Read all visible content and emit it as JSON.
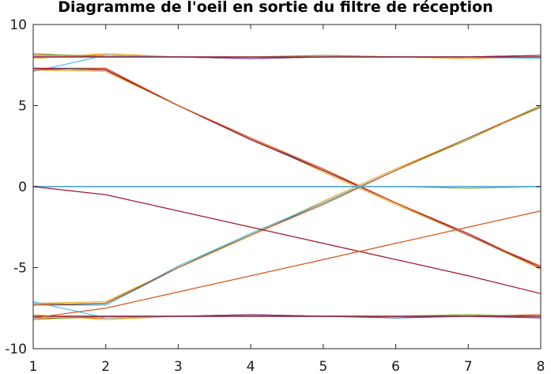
{
  "chart_data": {
    "type": "line",
    "title": "Diagramme de l'oeil en sortie du filtre de réception",
    "xlabel": "",
    "ylabel": "",
    "xlim": [
      1,
      8
    ],
    "ylim": [
      -10,
      10
    ],
    "xticks": [
      "1",
      "2",
      "3",
      "4",
      "5",
      "6",
      "7",
      "8"
    ],
    "yticks": [
      "10",
      "5",
      "0",
      "-5",
      "-10"
    ],
    "xtick_values": [
      1,
      2,
      3,
      4,
      5,
      6,
      7,
      8
    ],
    "ytick_values": [
      10,
      5,
      0,
      -5,
      -10
    ],
    "grid": false,
    "x": [
      1,
      2,
      3,
      4,
      5,
      6,
      7,
      8
    ],
    "series": [
      {
        "color": "#0072bd",
        "values": [
          8.0,
          8.0,
          8.0,
          7.9,
          8.0,
          8.0,
          8.0,
          8.0
        ]
      },
      {
        "color": "#d95319",
        "values": [
          8.1,
          8.1,
          8.0,
          8.0,
          8.0,
          8.0,
          7.9,
          8.0
        ]
      },
      {
        "color": "#edb120",
        "values": [
          7.9,
          8.2,
          8.0,
          7.9,
          8.1,
          8.0,
          7.9,
          8.0
        ]
      },
      {
        "color": "#77ac30",
        "values": [
          8.2,
          8.0,
          8.0,
          8.0,
          8.1,
          8.0,
          8.0,
          8.1
        ]
      },
      {
        "color": "#4dbeee",
        "values": [
          7.1,
          8.1,
          8.0,
          8.0,
          8.0,
          8.0,
          8.0,
          7.9
        ]
      },
      {
        "color": "#7e2f8e",
        "values": [
          8.0,
          8.0,
          8.0,
          7.9,
          8.0,
          8.0,
          8.0,
          8.1
        ]
      },
      {
        "color": "#a2142f",
        "values": [
          8.0,
          8.0,
          8.0,
          8.0,
          8.0,
          8.0,
          8.0,
          8.0
        ]
      },
      {
        "color": "#0072bd",
        "values": [
          -8.0,
          -8.0,
          -8.0,
          -8.0,
          -8.0,
          -8.1,
          -8.0,
          -8.0
        ]
      },
      {
        "color": "#d95319",
        "values": [
          -8.1,
          -8.1,
          -8.0,
          -8.0,
          -8.0,
          -8.0,
          -8.0,
          -7.9
        ]
      },
      {
        "color": "#edb120",
        "values": [
          -7.9,
          -8.2,
          -8.0,
          -7.9,
          -8.0,
          -8.0,
          -7.9,
          -8.1
        ]
      },
      {
        "color": "#77ac30",
        "values": [
          -8.2,
          -8.0,
          -8.0,
          -7.9,
          -8.0,
          -8.0,
          -7.9,
          -8.0
        ]
      },
      {
        "color": "#4dbeee",
        "values": [
          -7.1,
          -8.1,
          -8.0,
          -8.0,
          -8.0,
          -8.0,
          -8.0,
          -8.0
        ]
      },
      {
        "color": "#7e2f8e",
        "values": [
          -8.0,
          -8.0,
          -8.0,
          -7.9,
          -8.0,
          -8.0,
          -8.0,
          -8.1
        ]
      },
      {
        "color": "#a2142f",
        "values": [
          -8.0,
          -8.0,
          -8.0,
          -8.0,
          -8.0,
          -8.0,
          -8.0,
          -8.0
        ]
      },
      {
        "color": "#0072bd",
        "values": [
          7.3,
          7.3,
          5.0,
          3.0,
          1.0,
          -1.0,
          -3.0,
          -5.0
        ]
      },
      {
        "color": "#edb120",
        "values": [
          7.2,
          7.1,
          5.0,
          3.0,
          0.9,
          -1.1,
          -3.0,
          -5.1
        ]
      },
      {
        "color": "#7e2f8e",
        "values": [
          7.3,
          7.2,
          5.0,
          2.9,
          1.0,
          -1.0,
          -3.0,
          -5.0
        ]
      },
      {
        "color": "#a2142f",
        "values": [
          7.3,
          7.2,
          5.0,
          2.9,
          1.0,
          -1.0,
          -2.9,
          -5.0
        ]
      },
      {
        "color": "#d95319",
        "values": [
          7.2,
          7.3,
          5.0,
          3.0,
          1.1,
          -1.0,
          -3.0,
          -4.9
        ]
      },
      {
        "color": "#0072bd",
        "values": [
          -7.3,
          -7.3,
          -5.0,
          -3.0,
          -1.0,
          1.0,
          3.0,
          5.0
        ]
      },
      {
        "color": "#edb120",
        "values": [
          -7.2,
          -7.1,
          -5.0,
          -3.0,
          -0.9,
          1.1,
          3.0,
          5.0
        ]
      },
      {
        "color": "#77ac30",
        "values": [
          -7.3,
          -7.2,
          -5.0,
          -2.9,
          -1.0,
          1.0,
          2.9,
          5.0
        ]
      },
      {
        "color": "#4dbeee",
        "values": [
          -7.2,
          -7.3,
          -4.9,
          -2.9,
          -1.0,
          1.0,
          3.0,
          4.9
        ]
      },
      {
        "color": "#d95319",
        "values": [
          -7.3,
          -7.2,
          -5.0,
          -3.0,
          -1.1,
          1.0,
          3.0,
          4.9
        ]
      },
      {
        "color": "#0072bd",
        "values": [
          0.0,
          0.0,
          0.0,
          0.0,
          0.0,
          0.0,
          0.0,
          0.0
        ]
      },
      {
        "color": "#77ac30",
        "values": [
          0.0,
          0.0,
          0.0,
          0.0,
          0.0,
          0.0,
          -0.1,
          0.0
        ]
      },
      {
        "color": "#7e2f8e",
        "values": [
          0.0,
          0.0,
          0.0,
          0.0,
          0.0,
          0.0,
          0.0,
          0.0
        ]
      },
      {
        "color": "#4dbeee",
        "values": [
          0.0,
          0.0,
          0.0,
          0.0,
          0.0,
          0.0,
          0.0,
          0.0
        ]
      },
      {
        "color": "#a2142f",
        "values": [
          0.0,
          -0.5,
          -1.5,
          -2.5,
          -3.5,
          -4.5,
          -5.5,
          -6.6
        ]
      },
      {
        "color": "#d95319",
        "values": [
          -8.1,
          -7.5,
          -6.5,
          -5.5,
          -4.5,
          -3.5,
          -2.5,
          -1.5
        ]
      }
    ]
  }
}
